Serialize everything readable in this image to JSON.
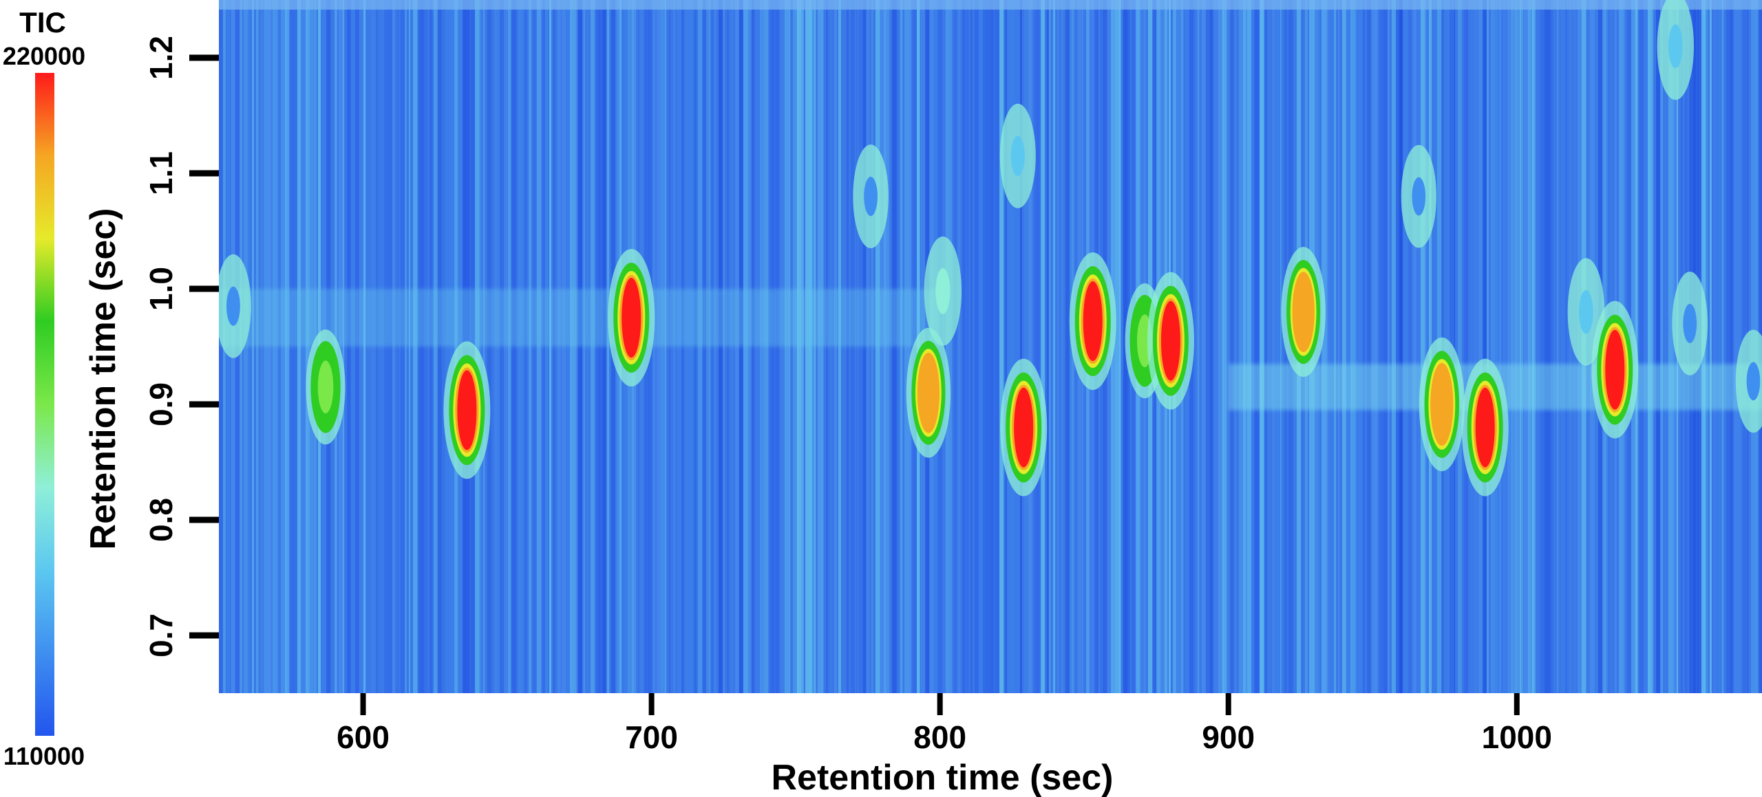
{
  "chart_data": {
    "type": "heatmap",
    "xlabel": "Retention time (sec)",
    "ylabel": "Retention time (sec)",
    "xlim": [
      550,
      1085
    ],
    "ylim": [
      0.65,
      1.25
    ],
    "xticks": [
      600,
      700,
      800,
      900,
      1000
    ],
    "yticks": [
      0.7,
      0.8,
      0.9,
      1.0,
      1.1,
      1.2
    ],
    "ytick_labels": [
      "0.7",
      "0.8",
      "0.9",
      "1.0",
      "1.1",
      "1.2"
    ],
    "colorbar": {
      "title": "TIC",
      "max": 220000,
      "min": 110000,
      "max_label": "220000",
      "min_label": "110000",
      "colors": [
        "#2255ee",
        "#3f8ff0",
        "#5cc8f0",
        "#8fefd8",
        "#7be84a",
        "#2fcc22",
        "#e6ea2a",
        "#f5a623",
        "#ff1a1a"
      ]
    },
    "background_color": "#3a78e8",
    "peaks": [
      {
        "x": 587,
        "y": 0.915,
        "intensity": 160000
      },
      {
        "x": 636,
        "y": 0.895,
        "intensity": 220000
      },
      {
        "x": 693,
        "y": 0.975,
        "intensity": 220000
      },
      {
        "x": 796,
        "y": 0.91,
        "intensity": 200000
      },
      {
        "x": 801,
        "y": 0.998,
        "intensity": 145000
      },
      {
        "x": 829,
        "y": 0.88,
        "intensity": 220000
      },
      {
        "x": 853,
        "y": 0.972,
        "intensity": 220000
      },
      {
        "x": 871,
        "y": 0.955,
        "intensity": 160000
      },
      {
        "x": 880,
        "y": 0.955,
        "intensity": 220000
      },
      {
        "x": 926,
        "y": 0.98,
        "intensity": 200000
      },
      {
        "x": 974,
        "y": 0.9,
        "intensity": 210000
      },
      {
        "x": 989,
        "y": 0.88,
        "intensity": 220000
      },
      {
        "x": 1024,
        "y": 0.98,
        "intensity": 140000
      },
      {
        "x": 1034,
        "y": 0.93,
        "intensity": 220000
      },
      {
        "x": 1055,
        "y": 1.21,
        "intensity": 140000
      },
      {
        "x": 555,
        "y": 0.985,
        "intensity": 130000
      },
      {
        "x": 776,
        "y": 1.08,
        "intensity": 130000
      },
      {
        "x": 827,
        "y": 1.115,
        "intensity": 132000
      },
      {
        "x": 966,
        "y": 1.08,
        "intensity": 128000
      },
      {
        "x": 1060,
        "y": 0.97,
        "intensity": 130000
      },
      {
        "x": 1082,
        "y": 0.92,
        "intensity": 128000
      }
    ],
    "grid": false
  }
}
